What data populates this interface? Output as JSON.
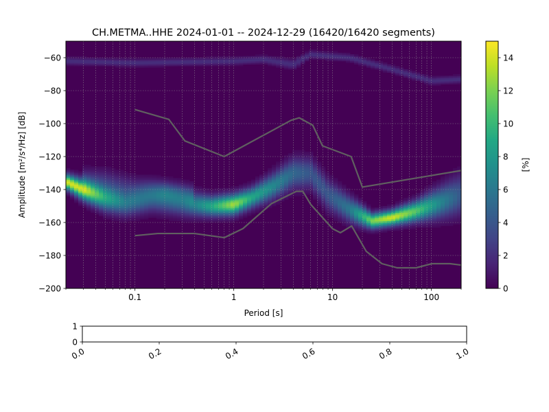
{
  "figure": {
    "title": "CH.METMA..HHE   2024-01-01 -- 2024-12-29  (16420/16420 segments)"
  },
  "chart_data": [
    {
      "type": "heatmap",
      "subtype": "probabilistic power spectral density",
      "title": "CH.METMA..HHE   2024-01-01 -- 2024-12-29  (16420/16420 segments)",
      "xlabel": "Period [s]",
      "ylabel": "Amplitude [m²/s⁴/Hz] [dB]",
      "xscale": "log",
      "xlim": [
        0.02,
        200
      ],
      "ylim": [
        -200,
        -50
      ],
      "xticks": [
        {
          "value": 0.1,
          "label": "0.1"
        },
        {
          "value": 1,
          "label": "1"
        },
        {
          "value": 10,
          "label": "10"
        },
        {
          "value": 100,
          "label": "100"
        }
      ],
      "yticks": [
        {
          "value": -60,
          "label": "−60"
        },
        {
          "value": -80,
          "label": "−80"
        },
        {
          "value": -100,
          "label": "−100"
        },
        {
          "value": -120,
          "label": "−120"
        },
        {
          "value": -140,
          "label": "−140"
        },
        {
          "value": -160,
          "label": "−160"
        },
        {
          "value": -180,
          "label": "−180"
        },
        {
          "value": -200,
          "label": "−200"
        }
      ],
      "grid": true,
      "colormap": "viridis",
      "background_color": "#440154",
      "colorbar": {
        "label": "[%]",
        "range": [
          0,
          15
        ],
        "ticks": [
          {
            "value": 0,
            "label": "0"
          },
          {
            "value": 2,
            "label": "2"
          },
          {
            "value": 4,
            "label": "4"
          },
          {
            "value": 6,
            "label": "6"
          },
          {
            "value": 8,
            "label": "8"
          },
          {
            "value": 10,
            "label": "10"
          },
          {
            "value": 12,
            "label": "12"
          },
          {
            "value": 14,
            "label": "14"
          }
        ]
      },
      "density_bands": [
        {
          "name": "main-noise-band",
          "points": [
            {
              "period": 0.02,
              "db": -135,
              "spread": 3,
              "peak": 14
            },
            {
              "period": 0.03,
              "db": -140,
              "spread": 4,
              "peak": 14
            },
            {
              "period": 0.05,
              "db": -145,
              "spread": 5,
              "peak": 9
            },
            {
              "period": 0.08,
              "db": -148,
              "spread": 5,
              "peak": 6
            },
            {
              "period": 0.15,
              "db": -146,
              "spread": 5,
              "peak": 4
            },
            {
              "period": 0.3,
              "db": -148,
              "spread": 5,
              "peak": 5
            },
            {
              "period": 0.6,
              "db": -150,
              "spread": 4,
              "peak": 9
            },
            {
              "period": 1,
              "db": -149,
              "spread": 4,
              "peak": 13
            },
            {
              "period": 1.5,
              "db": -145,
              "spread": 4,
              "peak": 9
            },
            {
              "period": 2.5,
              "db": -138,
              "spread": 5,
              "peak": 7
            },
            {
              "period": 4,
              "db": -130,
              "spread": 6,
              "peak": 5
            },
            {
              "period": 6,
              "db": -130,
              "spread": 6,
              "peak": 4
            },
            {
              "period": 9,
              "db": -143,
              "spread": 6,
              "peak": 4
            },
            {
              "period": 15,
              "db": -152,
              "spread": 5,
              "peak": 6
            },
            {
              "period": 25,
              "db": -159,
              "spread": 3,
              "peak": 12
            },
            {
              "period": 40,
              "db": -157,
              "spread": 3,
              "peak": 14
            },
            {
              "period": 70,
              "db": -153,
              "spread": 4,
              "peak": 11
            },
            {
              "period": 120,
              "db": -148,
              "spread": 6,
              "peak": 7
            },
            {
              "period": 200,
              "db": -143,
              "spread": 8,
              "peak": 4
            }
          ]
        },
        {
          "name": "secondary-high-frequency-band",
          "points": [
            {
              "period": 0.03,
              "db": -133,
              "spread": 4,
              "peak": 2
            },
            {
              "period": 0.05,
              "db": -135,
              "spread": 5,
              "peak": 2
            },
            {
              "period": 0.1,
              "db": -140,
              "spread": 5,
              "peak": 2
            },
            {
              "period": 0.2,
              "db": -141,
              "spread": 4,
              "peak": 4
            },
            {
              "period": 0.4,
              "db": -143,
              "spread": 4,
              "peak": 2
            }
          ]
        },
        {
          "name": "clipping-band",
          "points": [
            {
              "period": 0.02,
              "db": -62,
              "spread": 1.5,
              "peak": 2
            },
            {
              "period": 0.1,
              "db": -63,
              "spread": 1.5,
              "peak": 2
            },
            {
              "period": 1,
              "db": -62,
              "spread": 1.5,
              "peak": 2
            },
            {
              "period": 2,
              "db": -61,
              "spread": 1.5,
              "peak": 2
            },
            {
              "period": 4,
              "db": -64,
              "spread": 2,
              "peak": 2
            },
            {
              "period": 6,
              "db": -58,
              "spread": 1.5,
              "peak": 2
            },
            {
              "period": 15,
              "db": -60,
              "spread": 1.5,
              "peak": 2
            },
            {
              "period": 40,
              "db": -67,
              "spread": 1.5,
              "peak": 2
            },
            {
              "period": 100,
              "db": -74,
              "spread": 1.5,
              "peak": 2
            },
            {
              "period": 200,
              "db": -73,
              "spread": 1.5,
              "peak": 2
            }
          ]
        }
      ],
      "reference_curves": [
        {
          "name": "high-noise-model",
          "color": "#606060",
          "points": [
            [
              0.1,
              -91.5
            ],
            [
              0.22,
              -97.4
            ],
            [
              0.32,
              -110.5
            ],
            [
              0.8,
              -120
            ],
            [
              3.8,
              -98
            ],
            [
              4.6,
              -96.5
            ],
            [
              6.3,
              -101
            ],
            [
              7.9,
              -113.5
            ],
            [
              15.4,
              -120
            ],
            [
              20,
              -138.5
            ],
            [
              354.8,
              -126
            ]
          ]
        },
        {
          "name": "low-noise-model",
          "color": "#606060",
          "points": [
            [
              0.1,
              -168
            ],
            [
              0.17,
              -166.7
            ],
            [
              0.4,
              -166.7
            ],
            [
              0.8,
              -169.2
            ],
            [
              1.24,
              -163.7
            ],
            [
              2.4,
              -148.6
            ],
            [
              4.3,
              -141.1
            ],
            [
              5,
              -141.1
            ],
            [
              6,
              -149
            ],
            [
              10,
              -163.8
            ],
            [
              12,
              -166.2
            ],
            [
              15.6,
              -162.1
            ],
            [
              21.9,
              -177.5
            ],
            [
              31.6,
              -185
            ],
            [
              45,
              -187.5
            ],
            [
              70,
              -187.5
            ],
            [
              101,
              -185
            ],
            [
              154,
              -185
            ],
            [
              328,
              -187.5
            ]
          ]
        }
      ]
    },
    {
      "type": "line",
      "subtype": "empty axes",
      "xlim": [
        0,
        1
      ],
      "ylim": [
        0,
        1
      ],
      "xticks": [
        {
          "value": 0,
          "label": "0.0"
        },
        {
          "value": 0.2,
          "label": "0.2"
        },
        {
          "value": 0.4,
          "label": "0.4"
        },
        {
          "value": 0.6,
          "label": "0.6"
        },
        {
          "value": 0.8,
          "label": "0.8"
        },
        {
          "value": 1,
          "label": "1.0"
        }
      ],
      "yticks": [
        {
          "value": 0,
          "label": "0"
        },
        {
          "value": 1,
          "label": "1"
        }
      ],
      "series": []
    }
  ]
}
